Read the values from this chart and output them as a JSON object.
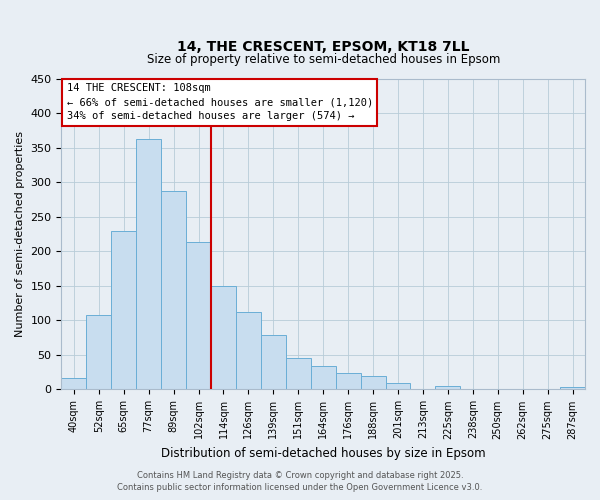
{
  "title": "14, THE CRESCENT, EPSOM, KT18 7LL",
  "subtitle": "Size of property relative to semi-detached houses in Epsom",
  "xlabel": "Distribution of semi-detached houses by size in Epsom",
  "ylabel": "Number of semi-detached properties",
  "bin_labels": [
    "40sqm",
    "52sqm",
    "65sqm",
    "77sqm",
    "89sqm",
    "102sqm",
    "114sqm",
    "126sqm",
    "139sqm",
    "151sqm",
    "164sqm",
    "176sqm",
    "188sqm",
    "201sqm",
    "213sqm",
    "225sqm",
    "238sqm",
    "250sqm",
    "262sqm",
    "275sqm",
    "287sqm"
  ],
  "bar_heights": [
    17,
    108,
    230,
    363,
    287,
    213,
    150,
    112,
    79,
    45,
    34,
    24,
    20,
    9,
    0,
    5,
    0,
    0,
    0,
    0,
    3
  ],
  "bar_color": "#c8ddef",
  "bar_edge_color": "#6aaed6",
  "vline_x_idx": 6,
  "vline_color": "#cc0000",
  "annotation_title": "14 THE CRESCENT: 108sqm",
  "annotation_line1": "← 66% of semi-detached houses are smaller (1,120)",
  "annotation_line2": "34% of semi-detached houses are larger (574) →",
  "annotation_box_edge": "#cc0000",
  "ylim": [
    0,
    450
  ],
  "yticks": [
    0,
    50,
    100,
    150,
    200,
    250,
    300,
    350,
    400,
    450
  ],
  "footer1": "Contains HM Land Registry data © Crown copyright and database right 2025.",
  "footer2": "Contains public sector information licensed under the Open Government Licence v3.0.",
  "bg_color": "#e8eef4",
  "plot_bg_color": "#e8eef4"
}
